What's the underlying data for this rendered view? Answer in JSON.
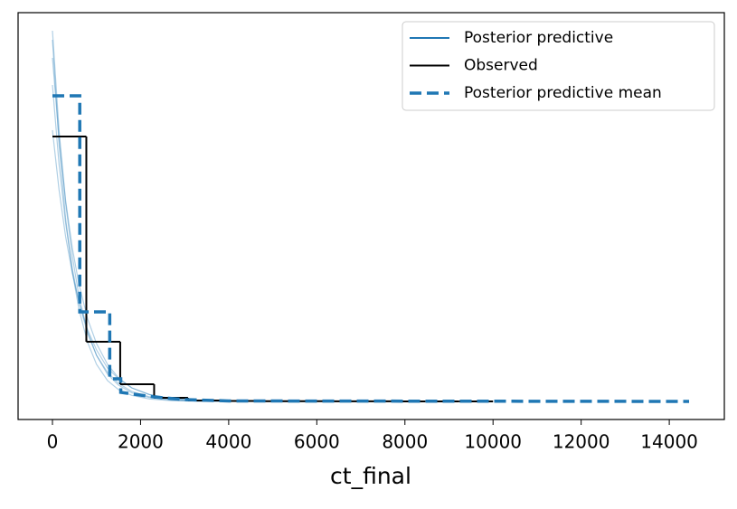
{
  "chart_data": {
    "type": "line",
    "x_label": "ct_final",
    "xlim": [
      -780,
      15250
    ],
    "ylim": [
      -20,
      430
    ],
    "xticks": [
      0,
      2000,
      4000,
      6000,
      8000,
      10000,
      12000,
      14000
    ],
    "legend": "upper right",
    "series": [
      {
        "name": "Posterior predictive",
        "color": "#1f77b4",
        "x": [
          0,
          150,
          300,
          450,
          600,
          800,
          1000,
          1250,
          1500,
          1800,
          2200,
          2700,
          3300,
          4000,
          5000,
          6000
        ],
        "samples": [
          [
            410,
            300,
            219,
            161,
            117,
            77,
            51,
            30,
            18,
            9.6,
            4.2,
            1.5,
            0.4,
            0.1,
            0,
            0
          ],
          [
            380,
            291,
            222,
            170,
            130,
            91,
            64,
            41,
            26,
            15,
            7.5,
            3,
            1.1,
            0.3,
            0.1,
            0
          ],
          [
            350,
            262,
            197,
            147,
            110,
            75,
            51,
            32,
            20,
            11,
            5.1,
            1.9,
            0.6,
            0.2,
            0.05,
            0
          ],
          [
            400,
            284,
            202,
            144,
            102,
            65,
            41,
            23,
            13,
            6.7,
            2.7,
            0.8,
            0.2,
            0.05,
            0,
            0
          ],
          [
            300,
            234,
            182,
            142,
            110,
            79,
            57,
            37,
            25,
            15,
            7.7,
            3.3,
            1.2,
            0.4,
            0.1,
            0
          ]
        ]
      },
      {
        "name": "Observed",
        "color": "#000000",
        "bins": [
          0,
          769,
          1538,
          2308,
          3077,
          3846,
          4615,
          5385,
          6154,
          6923,
          7692,
          8462,
          9231,
          10000
        ],
        "values": [
          293,
          66,
          19,
          4,
          1,
          0.5,
          0.3,
          0.2,
          0.1,
          0.1,
          0.05,
          0.05,
          0.05
        ]
      },
      {
        "name": "Posterior predictive mean",
        "color": "#1f77b4",
        "dashed": true,
        "x": [
          0,
          620,
          620,
          1300,
          1300,
          1550,
          1550,
          2300,
          3000,
          4000,
          14450
        ],
        "values": [
          338,
          338,
          99,
          99,
          25,
          25,
          10,
          5,
          2,
          0.5,
          0
        ]
      }
    ]
  }
}
